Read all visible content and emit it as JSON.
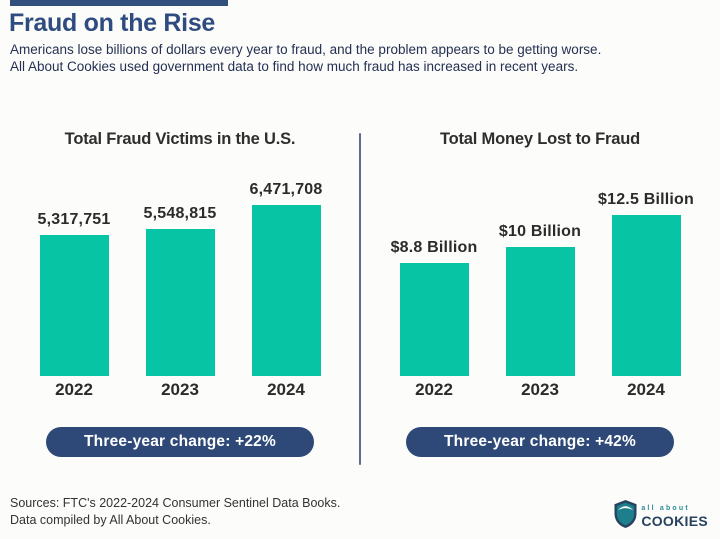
{
  "header": {
    "title": "Fraud on the Rise",
    "description_line1": "Americans lose billions of dollars every year to fraud, and the problem appears to be getting worse.",
    "description_line2": "All About Cookies used government data to find how much fraud has increased in recent years."
  },
  "chart_data": [
    {
      "type": "bar",
      "title": "Total Fraud Victims in the U.S.",
      "categories": [
        "2022",
        "2023",
        "2024"
      ],
      "values": [
        5317751,
        5548815,
        6471708
      ],
      "value_labels": [
        "5,317,751",
        "5,548,815",
        "6,471,708"
      ],
      "xlabel": "",
      "ylabel": "",
      "ylim": [
        0,
        6471708
      ],
      "grid": false,
      "legend": "none",
      "bar_color": "#06C4A4",
      "change_label": "Three-year change: +22%"
    },
    {
      "type": "bar",
      "title": "Total Money Lost to Fraud",
      "categories": [
        "2022",
        "2023",
        "2024"
      ],
      "values": [
        8.8,
        10,
        12.5
      ],
      "value_labels": [
        "$8.8 Billion",
        "$10 Billion",
        "$12.5 Billion"
      ],
      "xlabel": "",
      "ylabel": "",
      "ylim": [
        0,
        12.5
      ],
      "grid": false,
      "legend": "none",
      "bar_color": "#06C4A4",
      "change_label": "Three-year change: +42%"
    }
  ],
  "footer": {
    "sources_line1": "Sources: FTC's 2022-2024 Consumer Sentinel Data Books.",
    "sources_line2": "Data compiled by All About Cookies.",
    "logo_top": "all about",
    "logo_bottom": "COOKIES"
  },
  "colors": {
    "title_navy": "#2F4C80",
    "accent_bar_navy": "#31507E",
    "badge_navy": "#2E4977",
    "divider_navy": "#5C6C90",
    "bar_teal": "#06C4A4",
    "logo_teal": "#2E8C99",
    "logo_navy": "#27425F"
  }
}
